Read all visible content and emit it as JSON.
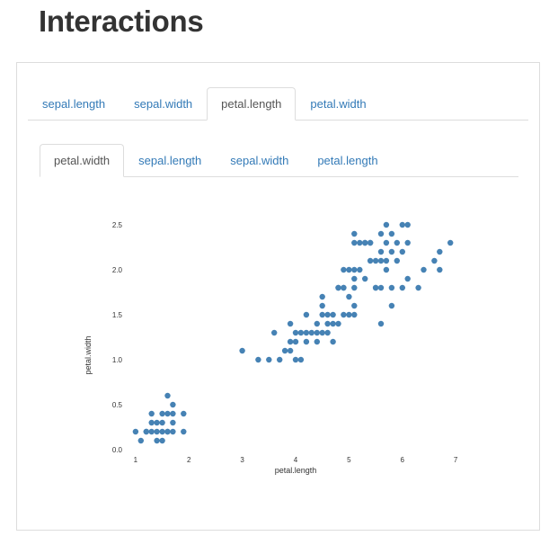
{
  "page": {
    "title": "Interactions"
  },
  "outer_tabs": [
    {
      "label": "sepal.length",
      "active": false
    },
    {
      "label": "sepal.width",
      "active": false
    },
    {
      "label": "petal.length",
      "active": true
    },
    {
      "label": "petal.width",
      "active": false
    }
  ],
  "inner_tabs": [
    {
      "label": "petal.width",
      "active": true
    },
    {
      "label": "sepal.length",
      "active": false
    },
    {
      "label": "sepal.width",
      "active": false
    },
    {
      "label": "petal.length",
      "active": false
    }
  ],
  "colors": {
    "point": "#4682b4",
    "tab_link": "#337ab7",
    "tab_active": "#555555",
    "border": "#dddddd"
  },
  "chart_data": {
    "type": "scatter",
    "title": "",
    "xlabel": "petal.length",
    "ylabel": "petal.width",
    "xlim": [
      0.8,
      7.2
    ],
    "ylim": [
      0.0,
      2.5
    ],
    "xticks": [
      "1",
      "2",
      "3",
      "4",
      "5",
      "6",
      "7"
    ],
    "yticks": [
      "0.0",
      "0.5",
      "1.0",
      "1.5",
      "2.0",
      "2.5"
    ],
    "grid": false,
    "points": [
      [
        1.0,
        0.2
      ],
      [
        1.1,
        0.1
      ],
      [
        1.2,
        0.2
      ],
      [
        1.3,
        0.2
      ],
      [
        1.3,
        0.3
      ],
      [
        1.3,
        0.4
      ],
      [
        1.4,
        0.1
      ],
      [
        1.4,
        0.2
      ],
      [
        1.4,
        0.3
      ],
      [
        1.5,
        0.1
      ],
      [
        1.5,
        0.2
      ],
      [
        1.5,
        0.3
      ],
      [
        1.5,
        0.4
      ],
      [
        1.6,
        0.2
      ],
      [
        1.6,
        0.4
      ],
      [
        1.6,
        0.6
      ],
      [
        1.7,
        0.2
      ],
      [
        1.7,
        0.3
      ],
      [
        1.7,
        0.4
      ],
      [
        1.7,
        0.5
      ],
      [
        1.9,
        0.2
      ],
      [
        1.9,
        0.4
      ],
      [
        1.2,
        0.2
      ],
      [
        1.6,
        0.2
      ],
      [
        3.0,
        1.1
      ],
      [
        3.3,
        1.0
      ],
      [
        3.5,
        1.0
      ],
      [
        3.6,
        1.3
      ],
      [
        3.7,
        1.0
      ],
      [
        3.8,
        1.1
      ],
      [
        3.9,
        1.1
      ],
      [
        3.9,
        1.2
      ],
      [
        3.9,
        1.4
      ],
      [
        4.0,
        1.0
      ],
      [
        4.0,
        1.2
      ],
      [
        4.0,
        1.3
      ],
      [
        4.1,
        1.0
      ],
      [
        4.1,
        1.3
      ],
      [
        4.2,
        1.2
      ],
      [
        4.2,
        1.3
      ],
      [
        4.2,
        1.5
      ],
      [
        4.3,
        1.3
      ],
      [
        4.4,
        1.2
      ],
      [
        4.4,
        1.3
      ],
      [
        4.4,
        1.4
      ],
      [
        4.5,
        1.3
      ],
      [
        4.5,
        1.5
      ],
      [
        4.5,
        1.6
      ],
      [
        4.5,
        1.7
      ],
      [
        4.6,
        1.3
      ],
      [
        4.6,
        1.4
      ],
      [
        4.6,
        1.5
      ],
      [
        4.7,
        1.2
      ],
      [
        4.7,
        1.4
      ],
      [
        4.7,
        1.5
      ],
      [
        4.8,
        1.4
      ],
      [
        4.8,
        1.8
      ],
      [
        4.9,
        1.5
      ],
      [
        4.9,
        1.8
      ],
      [
        5.0,
        1.5
      ],
      [
        5.0,
        1.7
      ],
      [
        5.0,
        2.0
      ],
      [
        4.9,
        2.0
      ],
      [
        5.1,
        1.5
      ],
      [
        5.1,
        1.6
      ],
      [
        5.1,
        1.8
      ],
      [
        5.1,
        1.9
      ],
      [
        5.1,
        2.0
      ],
      [
        5.1,
        2.3
      ],
      [
        5.1,
        2.4
      ],
      [
        5.2,
        2.0
      ],
      [
        5.2,
        2.3
      ],
      [
        5.3,
        1.9
      ],
      [
        5.3,
        2.3
      ],
      [
        5.4,
        2.1
      ],
      [
        5.4,
        2.3
      ],
      [
        5.5,
        1.8
      ],
      [
        5.5,
        2.1
      ],
      [
        5.6,
        1.8
      ],
      [
        5.6,
        2.1
      ],
      [
        5.6,
        2.2
      ],
      [
        5.6,
        2.4
      ],
      [
        5.7,
        2.1
      ],
      [
        5.7,
        2.3
      ],
      [
        5.7,
        2.5
      ],
      [
        5.8,
        1.6
      ],
      [
        5.8,
        1.8
      ],
      [
        5.8,
        2.2
      ],
      [
        5.9,
        2.1
      ],
      [
        5.9,
        2.3
      ],
      [
        6.0,
        1.8
      ],
      [
        6.0,
        2.5
      ],
      [
        6.1,
        1.9
      ],
      [
        6.1,
        2.3
      ],
      [
        6.1,
        2.5
      ],
      [
        6.3,
        1.8
      ],
      [
        6.4,
        2.0
      ],
      [
        6.6,
        2.1
      ],
      [
        6.7,
        2.0
      ],
      [
        6.7,
        2.2
      ],
      [
        6.9,
        2.3
      ],
      [
        5.6,
        1.4
      ],
      [
        5.7,
        2.0
      ],
      [
        5.5,
        1.8
      ],
      [
        4.8,
        1.8
      ],
      [
        4.9,
        1.8
      ],
      [
        5.3,
        2.3
      ],
      [
        5.4,
        2.3
      ],
      [
        5.8,
        2.4
      ],
      [
        6.0,
        2.2
      ]
    ]
  }
}
